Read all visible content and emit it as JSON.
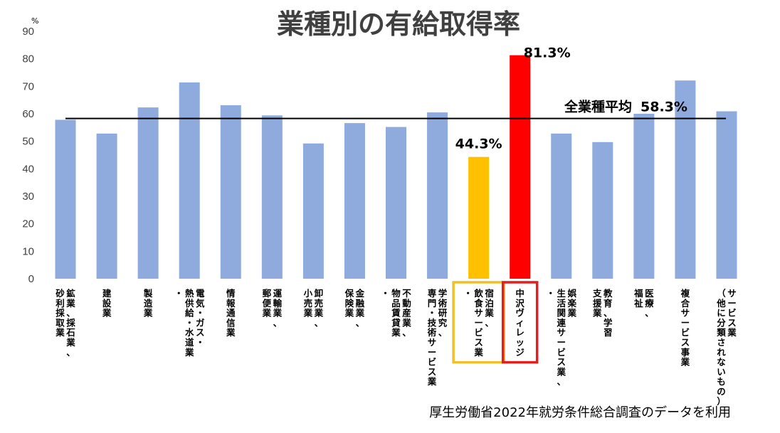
{
  "chart_data": {
    "type": "bar",
    "title": "業種別の有給取得率",
    "y_unit": "%",
    "ylim": [
      0,
      90
    ],
    "yticks": [
      0,
      10,
      20,
      30,
      40,
      50,
      60,
      70,
      80,
      90
    ],
    "categories": [
      [
        "鉱業、採石業、",
        "砂利採取業"
      ],
      [
        "建設業"
      ],
      [
        "製造業"
      ],
      [
        "電気・ガス・",
        "熱供給・水道業",
        "・"
      ],
      [
        "情報通信業"
      ],
      [
        "運輸業、",
        "郵便業"
      ],
      [
        "卸売業、",
        "小売業"
      ],
      [
        "金融業、",
        "保険業"
      ],
      [
        "不動産業、",
        "物品賃貸業",
        "・"
      ],
      [
        "学術研究、",
        "専門・技術サービス業"
      ],
      [
        "宿泊業、",
        "飲食サービス業",
        "・"
      ],
      [
        "中沢ヴィレッジ"
      ],
      [
        "娯楽業",
        "生活関連サービス業、",
        "・"
      ],
      [
        "教育、学習",
        "支援業"
      ],
      [
        "医療、",
        "福祉"
      ],
      [
        "複合サービス事業"
      ],
      [
        "サービス業",
        "（他に分類されないもの）"
      ]
    ],
    "values": [
      57.8,
      52.8,
      62.3,
      71.4,
      63.1,
      59.4,
      49.2,
      56.6,
      55.2,
      60.5,
      44.3,
      81.3,
      52.8,
      49.7,
      60.0,
      72.1,
      60.9
    ],
    "colors": [
      "#8faadc",
      "#8faadc",
      "#8faadc",
      "#8faadc",
      "#8faadc",
      "#8faadc",
      "#8faadc",
      "#8faadc",
      "#8faadc",
      "#8faadc",
      "#ffc000",
      "#ff0000",
      "#8faadc",
      "#8faadc",
      "#8faadc",
      "#8faadc",
      "#8faadc"
    ],
    "highlight_boxes": [
      {
        "index": 10,
        "color": "#f0c02a"
      },
      {
        "index": 11,
        "color": "#e31e1e"
      }
    ],
    "data_labels": [
      {
        "index": 10,
        "text": "44.3%"
      },
      {
        "index": 11,
        "text": "81.3%"
      }
    ],
    "average_line": {
      "value": 58.3,
      "label": "全業種平均",
      "value_label": "58.3%",
      "color": "#000000"
    },
    "source_note": "厚生労働省2022年就労条件総合調査のデータを利用"
  }
}
